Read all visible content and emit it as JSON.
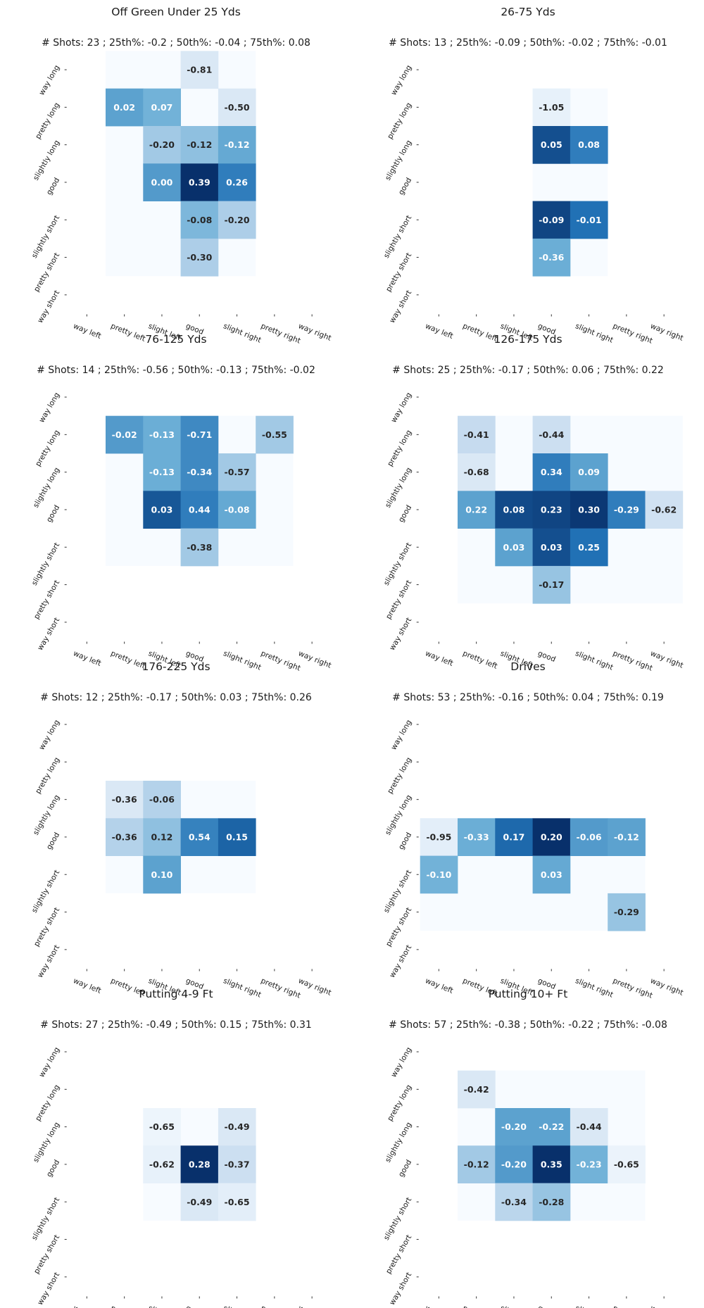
{
  "colors": {
    "colormap": "Blues",
    "empty_cell": "#f7fbff"
  },
  "chart_data": [
    {
      "type": "heatmap",
      "title": "Off Green Under 25 Yds",
      "subtitle": "# Shots: 23 ; 25th%: -0.2 ; 50th%: -0.04 ; 75th%: 0.08",
      "x_labels": [
        "way left",
        "pretty left",
        "slight left",
        "good",
        "slight right",
        "pretty right",
        "way right"
      ],
      "y_labels": [
        "way long",
        "pretty long",
        "slightly long",
        "good",
        "slightly short",
        "pretty short",
        "way short"
      ],
      "shade_cols": [
        1,
        4
      ],
      "shade_rows": [
        0,
        5
      ],
      "cells": [
        {
          "row": 0,
          "col": 3,
          "value": "-0.81",
          "intensity": 0.15
        },
        {
          "row": 1,
          "col": 1,
          "value": "0.02",
          "intensity": 0.55
        },
        {
          "row": 1,
          "col": 2,
          "value": "0.07",
          "intensity": 0.48
        },
        {
          "row": 1,
          "col": 4,
          "value": "-0.50",
          "intensity": 0.15
        },
        {
          "row": 2,
          "col": 2,
          "value": "-0.20",
          "intensity": 0.35
        },
        {
          "row": 2,
          "col": 3,
          "value": "-0.12",
          "intensity": 0.4
        },
        {
          "row": 2,
          "col": 4,
          "value": "-0.12",
          "intensity": 0.52
        },
        {
          "row": 3,
          "col": 2,
          "value": "0.00",
          "intensity": 0.58
        },
        {
          "row": 3,
          "col": 3,
          "value": "0.39",
          "intensity": 1.0
        },
        {
          "row": 3,
          "col": 4,
          "value": "0.26",
          "intensity": 0.7
        },
        {
          "row": 4,
          "col": 3,
          "value": "-0.08",
          "intensity": 0.45
        },
        {
          "row": 4,
          "col": 4,
          "value": "-0.20",
          "intensity": 0.32
        },
        {
          "row": 5,
          "col": 3,
          "value": "-0.30",
          "intensity": 0.32
        }
      ]
    },
    {
      "type": "heatmap",
      "title": "26-75 Yds",
      "subtitle": "# Shots: 13 ; 25th%: -0.09 ; 50th%: -0.02 ; 75th%: -0.01",
      "x_labels": [
        "way left",
        "pretty left",
        "slight left",
        "good",
        "slight right",
        "pretty right",
        "way right"
      ],
      "y_labels": [
        "way long",
        "pretty long",
        "slightly long",
        "good",
        "slightly short",
        "pretty short",
        "way short"
      ],
      "shade_cols": [
        3,
        4
      ],
      "shade_rows": [
        1,
        5
      ],
      "cells": [
        {
          "row": 1,
          "col": 3,
          "value": "-1.05",
          "intensity": 0.08
        },
        {
          "row": 2,
          "col": 3,
          "value": "0.05",
          "intensity": 0.88
        },
        {
          "row": 2,
          "col": 4,
          "value": "0.08",
          "intensity": 0.7
        },
        {
          "row": 4,
          "col": 3,
          "value": "-0.09",
          "intensity": 0.92
        },
        {
          "row": 4,
          "col": 4,
          "value": "-0.01",
          "intensity": 0.75
        },
        {
          "row": 5,
          "col": 3,
          "value": "-0.36",
          "intensity": 0.5
        }
      ]
    },
    {
      "type": "heatmap",
      "title": "76-125 Yds",
      "subtitle": "# Shots: 14 ; 25th%: -0.56 ; 50th%: -0.13 ; 75th%: -0.02",
      "x_labels": [
        "way left",
        "pretty left",
        "slight left",
        "good",
        "slight right",
        "pretty right",
        "way right"
      ],
      "y_labels": [
        "way long",
        "pretty long",
        "slightly long",
        "good",
        "slightly short",
        "pretty short",
        "way short"
      ],
      "shade_cols": [
        1,
        5
      ],
      "shade_rows": [
        1,
        4
      ],
      "cells": [
        {
          "row": 1,
          "col": 1,
          "value": "-0.02",
          "intensity": 0.58
        },
        {
          "row": 1,
          "col": 2,
          "value": "-0.13",
          "intensity": 0.5
        },
        {
          "row": 1,
          "col": 3,
          "value": "-0.71",
          "intensity": 0.65
        },
        {
          "row": 1,
          "col": 5,
          "value": "-0.55",
          "intensity": 0.35
        },
        {
          "row": 2,
          "col": 2,
          "value": "-0.13",
          "intensity": 0.5
        },
        {
          "row": 2,
          "col": 3,
          "value": "-0.34",
          "intensity": 0.65
        },
        {
          "row": 2,
          "col": 4,
          "value": "-0.57",
          "intensity": 0.35
        },
        {
          "row": 3,
          "col": 2,
          "value": "0.03",
          "intensity": 0.85
        },
        {
          "row": 3,
          "col": 3,
          "value": "0.44",
          "intensity": 0.7
        },
        {
          "row": 3,
          "col": 4,
          "value": "-0.08",
          "intensity": 0.52
        },
        {
          "row": 4,
          "col": 3,
          "value": "-0.38",
          "intensity": 0.35
        }
      ]
    },
    {
      "type": "heatmap",
      "title": "126-175 Yds",
      "subtitle": "# Shots: 25 ; 25th%: -0.17 ; 50th%: 0.06 ; 75th%: 0.22",
      "x_labels": [
        "way left",
        "pretty left",
        "slight left",
        "good",
        "slight right",
        "pretty right",
        "way right"
      ],
      "y_labels": [
        "way long",
        "pretty long",
        "slightly long",
        "good",
        "slightly short",
        "pretty short",
        "way short"
      ],
      "shade_cols": [
        1,
        6
      ],
      "shade_rows": [
        1,
        5
      ],
      "cells": [
        {
          "row": 1,
          "col": 1,
          "value": "-0.41",
          "intensity": 0.25
        },
        {
          "row": 1,
          "col": 3,
          "value": "-0.44",
          "intensity": 0.22
        },
        {
          "row": 2,
          "col": 1,
          "value": "-0.68",
          "intensity": 0.15
        },
        {
          "row": 2,
          "col": 3,
          "value": "0.34",
          "intensity": 0.7
        },
        {
          "row": 2,
          "col": 4,
          "value": "0.09",
          "intensity": 0.55
        },
        {
          "row": 3,
          "col": 1,
          "value": "0.22",
          "intensity": 0.55
        },
        {
          "row": 3,
          "col": 2,
          "value": "0.08",
          "intensity": 0.9
        },
        {
          "row": 3,
          "col": 3,
          "value": "0.23",
          "intensity": 0.92
        },
        {
          "row": 3,
          "col": 4,
          "value": "0.30",
          "intensity": 0.97
        },
        {
          "row": 3,
          "col": 5,
          "value": "-0.29",
          "intensity": 0.7
        },
        {
          "row": 3,
          "col": 6,
          "value": "-0.62",
          "intensity": 0.2
        },
        {
          "row": 4,
          "col": 2,
          "value": "0.03",
          "intensity": 0.55
        },
        {
          "row": 4,
          "col": 3,
          "value": "0.03",
          "intensity": 0.88
        },
        {
          "row": 4,
          "col": 4,
          "value": "0.25",
          "intensity": 0.75
        },
        {
          "row": 5,
          "col": 3,
          "value": "-0.17",
          "intensity": 0.38
        }
      ]
    },
    {
      "type": "heatmap",
      "title": "176-225 Yds",
      "subtitle": "# Shots: 12 ; 25th%: -0.17 ; 50th%: 0.03 ; 75th%: 0.26",
      "x_labels": [
        "way left",
        "pretty left",
        "slight left",
        "good",
        "slight right",
        "pretty right",
        "way right"
      ],
      "y_labels": [
        "way long",
        "pretty long",
        "slightly long",
        "good",
        "slightly short",
        "pretty short",
        "way short"
      ],
      "shade_cols": [
        1,
        4
      ],
      "shade_rows": [
        2,
        4
      ],
      "cells": [
        {
          "row": 2,
          "col": 1,
          "value": "-0.36",
          "intensity": 0.15
        },
        {
          "row": 2,
          "col": 2,
          "value": "-0.06",
          "intensity": 0.3
        },
        {
          "row": 3,
          "col": 1,
          "value": "-0.36",
          "intensity": 0.3
        },
        {
          "row": 3,
          "col": 2,
          "value": "0.12",
          "intensity": 0.4
        },
        {
          "row": 3,
          "col": 3,
          "value": "0.54",
          "intensity": 0.68
        },
        {
          "row": 3,
          "col": 4,
          "value": "0.15",
          "intensity": 0.8
        },
        {
          "row": 4,
          "col": 2,
          "value": "0.10",
          "intensity": 0.55
        }
      ]
    },
    {
      "type": "heatmap",
      "title": "Drives",
      "subtitle": "# Shots: 53 ; 25th%: -0.16 ; 50th%: 0.04 ; 75th%: 0.19",
      "x_labels": [
        "way left",
        "pretty left",
        "slight left",
        "good",
        "slight right",
        "pretty right",
        "way right"
      ],
      "y_labels": [
        "way long",
        "pretty long",
        "slightly long",
        "good",
        "slightly short",
        "pretty short",
        "way short"
      ],
      "shade_cols": [
        0,
        5
      ],
      "shade_rows": [
        3,
        5
      ],
      "cells": [
        {
          "row": 3,
          "col": 0,
          "value": "-0.95",
          "intensity": 0.1
        },
        {
          "row": 3,
          "col": 1,
          "value": "-0.33",
          "intensity": 0.5
        },
        {
          "row": 3,
          "col": 2,
          "value": "0.17",
          "intensity": 0.78
        },
        {
          "row": 3,
          "col": 3,
          "value": "0.20",
          "intensity": 1.0
        },
        {
          "row": 3,
          "col": 4,
          "value": "-0.06",
          "intensity": 0.58
        },
        {
          "row": 3,
          "col": 5,
          "value": "-0.12",
          "intensity": 0.55
        },
        {
          "row": 4,
          "col": 0,
          "value": "-0.10",
          "intensity": 0.48
        },
        {
          "row": 4,
          "col": 3,
          "value": "0.03",
          "intensity": 0.52
        },
        {
          "row": 5,
          "col": 5,
          "value": "-0.29",
          "intensity": 0.38
        }
      ]
    },
    {
      "type": "heatmap",
      "title": "Putting 4-9 Ft",
      "subtitle": "# Shots: 27 ; 25th%: -0.49 ; 50th%: 0.15 ; 75th%: 0.31",
      "x_labels": [
        "way left",
        "pretty left",
        "slight left",
        "good",
        "slight right",
        "pretty right",
        "way right"
      ],
      "y_labels": [
        "way long",
        "pretty long",
        "slightly long",
        "good",
        "slightly short",
        "pretty short",
        "way short"
      ],
      "shade_cols": [
        2,
        4
      ],
      "shade_rows": [
        2,
        4
      ],
      "cells": [
        {
          "row": 2,
          "col": 2,
          "value": "-0.65",
          "intensity": 0.05
        },
        {
          "row": 2,
          "col": 4,
          "value": "-0.49",
          "intensity": 0.15
        },
        {
          "row": 3,
          "col": 2,
          "value": "-0.62",
          "intensity": 0.08
        },
        {
          "row": 3,
          "col": 3,
          "value": "0.28",
          "intensity": 1.0
        },
        {
          "row": 3,
          "col": 4,
          "value": "-0.37",
          "intensity": 0.22
        },
        {
          "row": 4,
          "col": 3,
          "value": "-0.49",
          "intensity": 0.15
        },
        {
          "row": 4,
          "col": 4,
          "value": "-0.65",
          "intensity": 0.1
        }
      ]
    },
    {
      "type": "heatmap",
      "title": "Putting 10+ Ft",
      "subtitle": "# Shots: 57 ; 25th%: -0.38 ; 50th%: -0.22 ; 75th%: -0.08",
      "x_labels": [
        "way left",
        "pretty left",
        "slight left",
        "good",
        "slight right",
        "pretty right",
        "way right"
      ],
      "y_labels": [
        "way long",
        "pretty long",
        "slightly long",
        "good",
        "slightly short",
        "pretty short",
        "way short"
      ],
      "shade_cols": [
        1,
        5
      ],
      "shade_rows": [
        1,
        4
      ],
      "cells": [
        {
          "row": 1,
          "col": 1,
          "value": "-0.42",
          "intensity": 0.15
        },
        {
          "row": 2,
          "col": 2,
          "value": "-0.20",
          "intensity": 0.55
        },
        {
          "row": 2,
          "col": 3,
          "value": "-0.22",
          "intensity": 0.55
        },
        {
          "row": 2,
          "col": 4,
          "value": "-0.44",
          "intensity": 0.15
        },
        {
          "row": 3,
          "col": 1,
          "value": "-0.12",
          "intensity": 0.35
        },
        {
          "row": 3,
          "col": 2,
          "value": "-0.20",
          "intensity": 0.58
        },
        {
          "row": 3,
          "col": 3,
          "value": "0.35",
          "intensity": 1.0
        },
        {
          "row": 3,
          "col": 4,
          "value": "-0.23",
          "intensity": 0.48
        },
        {
          "row": 3,
          "col": 5,
          "value": "-0.65",
          "intensity": 0.06
        },
        {
          "row": 4,
          "col": 2,
          "value": "-0.34",
          "intensity": 0.28
        },
        {
          "row": 4,
          "col": 3,
          "value": "-0.28",
          "intensity": 0.38
        }
      ]
    }
  ]
}
